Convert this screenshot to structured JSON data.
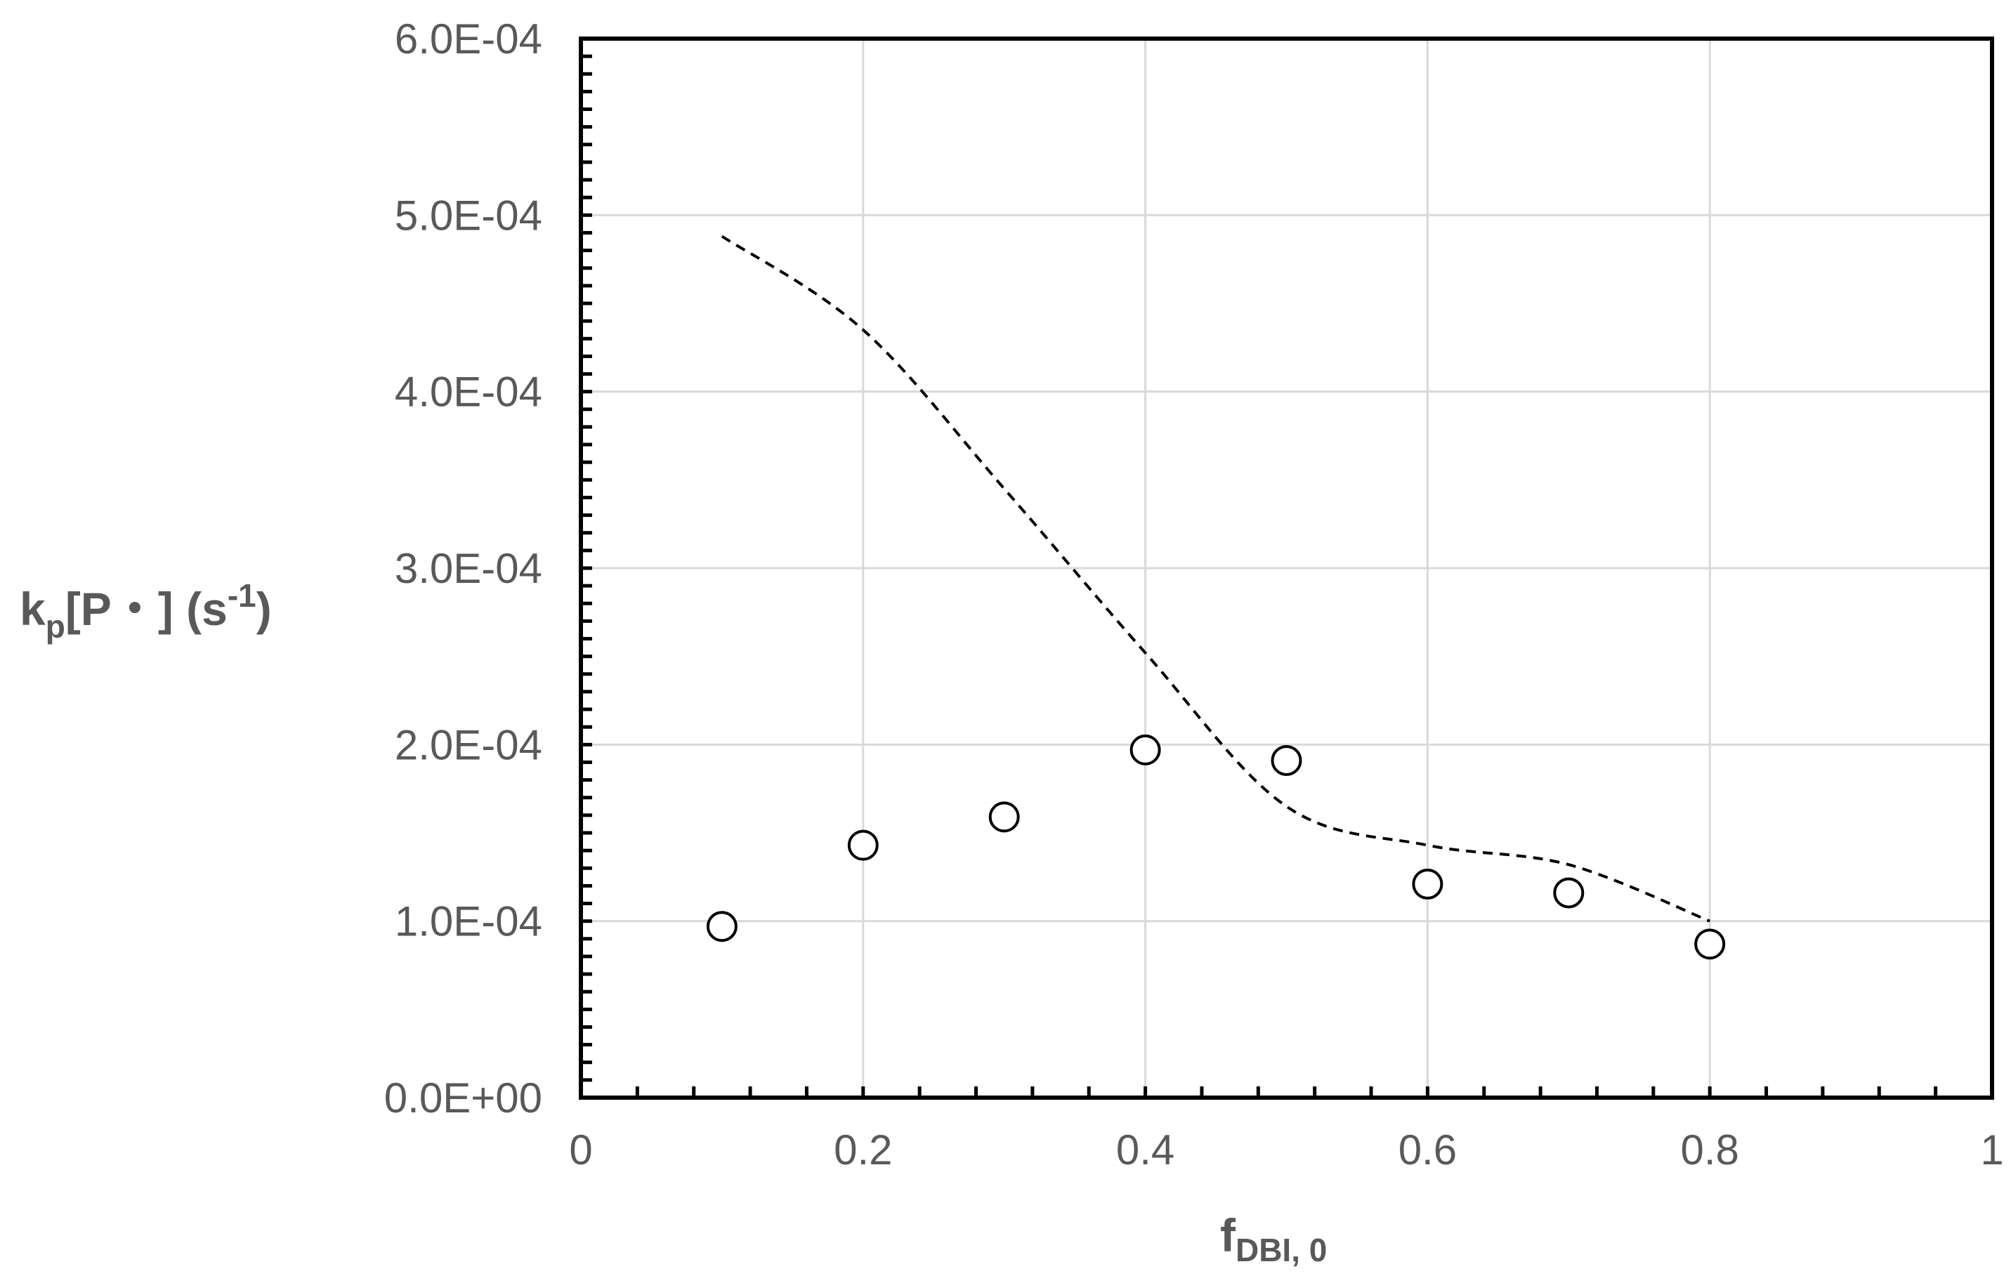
{
  "chart_data": {
    "type": "scatter",
    "title": "",
    "xlabel": {
      "main": "f",
      "sub": "DBI, 0"
    },
    "ylabel": {
      "main": "k",
      "sub": "p",
      "rest": "[P・] (s",
      "sup": "-1",
      "end": ")"
    },
    "xlim": [
      0,
      1
    ],
    "ylim": [
      0,
      0.0006
    ],
    "x_ticks": [
      {
        "value": 0,
        "label": "0"
      },
      {
        "value": 0.2,
        "label": "0.2"
      },
      {
        "value": 0.4,
        "label": "0.4"
      },
      {
        "value": 0.6,
        "label": "0.6"
      },
      {
        "value": 0.8,
        "label": "0.8"
      },
      {
        "value": 1,
        "label": "1"
      }
    ],
    "y_ticks": [
      {
        "value": 0,
        "label": "0.0E+00"
      },
      {
        "value": 0.0001,
        "label": "1.0E-04"
      },
      {
        "value": 0.0002,
        "label": "2.0E-04"
      },
      {
        "value": 0.0003,
        "label": "3.0E-04"
      },
      {
        "value": 0.0004,
        "label": "4.0E-04"
      },
      {
        "value": 0.0005,
        "label": "5.0E-04"
      },
      {
        "value": 0.0006,
        "label": "6.0E-04"
      }
    ],
    "grid": true,
    "series": [
      {
        "style": "open-circle-markers",
        "color": "#000000",
        "points": [
          {
            "x": 0.1,
            "y": 9.7e-05
          },
          {
            "x": 0.2,
            "y": 0.000143
          },
          {
            "x": 0.3,
            "y": 0.000159
          },
          {
            "x": 0.4,
            "y": 0.000197
          },
          {
            "x": 0.5,
            "y": 0.000191
          },
          {
            "x": 0.6,
            "y": 0.000121
          },
          {
            "x": 0.7,
            "y": 0.000116
          },
          {
            "x": 0.8,
            "y": 8.7e-05
          }
        ]
      },
      {
        "style": "dashed-line",
        "color": "#000000",
        "points": [
          {
            "x": 0.1,
            "y": 0.000488
          },
          {
            "x": 0.2,
            "y": 0.000435
          },
          {
            "x": 0.3,
            "y": 0.000345
          },
          {
            "x": 0.4,
            "y": 0.000252
          },
          {
            "x": 0.5,
            "y": 0.000165
          },
          {
            "x": 0.6,
            "y": 0.000143
          },
          {
            "x": 0.7,
            "y": 0.000132
          },
          {
            "x": 0.8,
            "y": 0.0001
          }
        ]
      }
    ]
  }
}
